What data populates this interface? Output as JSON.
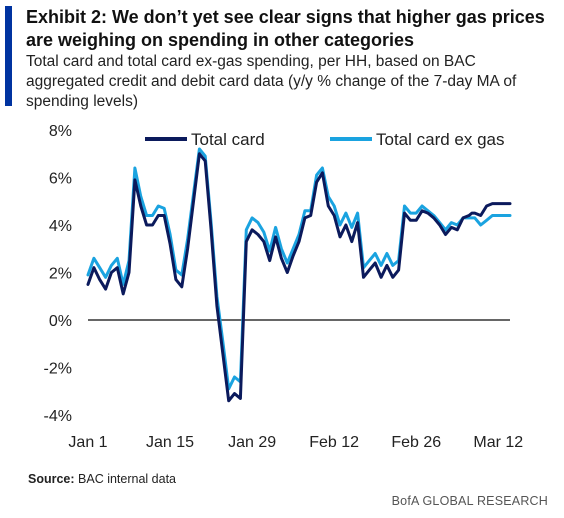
{
  "header": {
    "title": "Exhibit 2: We don’t yet see clear signs that higher gas prices are weighing on spending in other categories",
    "subtitle": "Total card and total card ex-gas spending, per HH, based on BAC aggregated credit and debit card data (y/y % change of the 7-day MA of spending levels)"
  },
  "footer": {
    "source_label": "Source:",
    "source_text": "BAC internal data",
    "brand": "BofA GLOBAL RESEARCH"
  },
  "colors": {
    "accent": "#0033a0",
    "series_total": "#0b1a5c",
    "series_ex_gas": "#1aa3e0",
    "zero_line": "#666666"
  },
  "chart_data": {
    "type": "line",
    "title": "",
    "xlabel": "",
    "ylabel": "",
    "ylim": [
      -4,
      8
    ],
    "yticks": [
      8,
      6,
      4,
      2,
      0,
      -2,
      -4
    ],
    "ytick_labels": [
      "8%",
      "6%",
      "4%",
      "2%",
      "0%",
      "-2%",
      "-4%"
    ],
    "xtick_labels": [
      "Jan 1",
      "Jan 15",
      "Jan 29",
      "Feb 12",
      "Feb 26",
      "Mar 12"
    ],
    "xtick_days": [
      1,
      15,
      29,
      43,
      57,
      71
    ],
    "x_days": [
      1,
      2,
      3,
      4,
      5,
      6,
      7,
      8,
      9,
      10,
      11,
      12,
      13,
      14,
      15,
      16,
      17,
      18,
      19,
      20,
      21,
      22,
      23,
      24,
      25,
      26,
      27,
      28,
      29,
      30,
      31,
      32,
      33,
      34,
      35,
      36,
      37,
      38,
      39,
      40,
      41,
      42,
      43,
      44,
      45,
      46,
      47,
      48,
      49,
      50,
      51,
      52,
      53,
      54,
      55,
      56,
      57,
      58,
      59,
      60,
      61,
      62,
      63,
      64,
      65,
      66,
      66.5,
      67,
      68,
      69,
      70,
      71,
      72,
      73
    ],
    "grid": false,
    "legend": "top",
    "series": [
      {
        "name": "Total card",
        "values": [
          1.5,
          2.2,
          1.7,
          1.3,
          2.0,
          2.2,
          1.1,
          2.0,
          5.9,
          4.8,
          4.0,
          4.0,
          4.4,
          4.4,
          3.2,
          1.7,
          1.4,
          3.0,
          5.0,
          7.0,
          6.7,
          3.8,
          0.6,
          -1.4,
          -3.4,
          -3.1,
          -3.3,
          3.3,
          3.8,
          3.6,
          3.3,
          2.5,
          3.5,
          2.6,
          2.0,
          2.7,
          3.3,
          4.3,
          4.4,
          5.8,
          6.2,
          4.8,
          4.4,
          3.5,
          4.0,
          3.3,
          4.1,
          1.8,
          2.1,
          2.4,
          1.8,
          2.3,
          1.8,
          2.1,
          4.5,
          4.2,
          4.2,
          4.6,
          4.5,
          4.3,
          4.0,
          3.6,
          3.9,
          3.8,
          4.3,
          4.4,
          4.5,
          4.5,
          4.4,
          4.8,
          4.9,
          4.9,
          4.9,
          4.9
        ]
      },
      {
        "name": "Total card ex gas",
        "values": [
          1.9,
          2.6,
          2.2,
          1.8,
          2.3,
          2.6,
          1.5,
          2.5,
          6.4,
          5.2,
          4.4,
          4.4,
          4.8,
          4.7,
          3.6,
          2.1,
          1.9,
          3.4,
          5.3,
          7.2,
          6.9,
          4.1,
          1.0,
          -0.9,
          -2.9,
          -2.4,
          -2.6,
          3.8,
          4.3,
          4.1,
          3.7,
          2.9,
          3.9,
          3.0,
          2.4,
          3.0,
          3.6,
          4.6,
          4.6,
          6.1,
          6.4,
          5.2,
          4.8,
          4.0,
          4.5,
          3.9,
          4.5,
          2.2,
          2.5,
          2.8,
          2.3,
          2.8,
          2.3,
          2.5,
          4.8,
          4.5,
          4.5,
          4.8,
          4.6,
          4.4,
          4.1,
          3.8,
          4.1,
          4.0,
          4.3,
          4.3,
          4.3,
          4.3,
          4.0,
          4.2,
          4.4,
          4.4,
          4.4,
          4.4
        ]
      }
    ]
  }
}
